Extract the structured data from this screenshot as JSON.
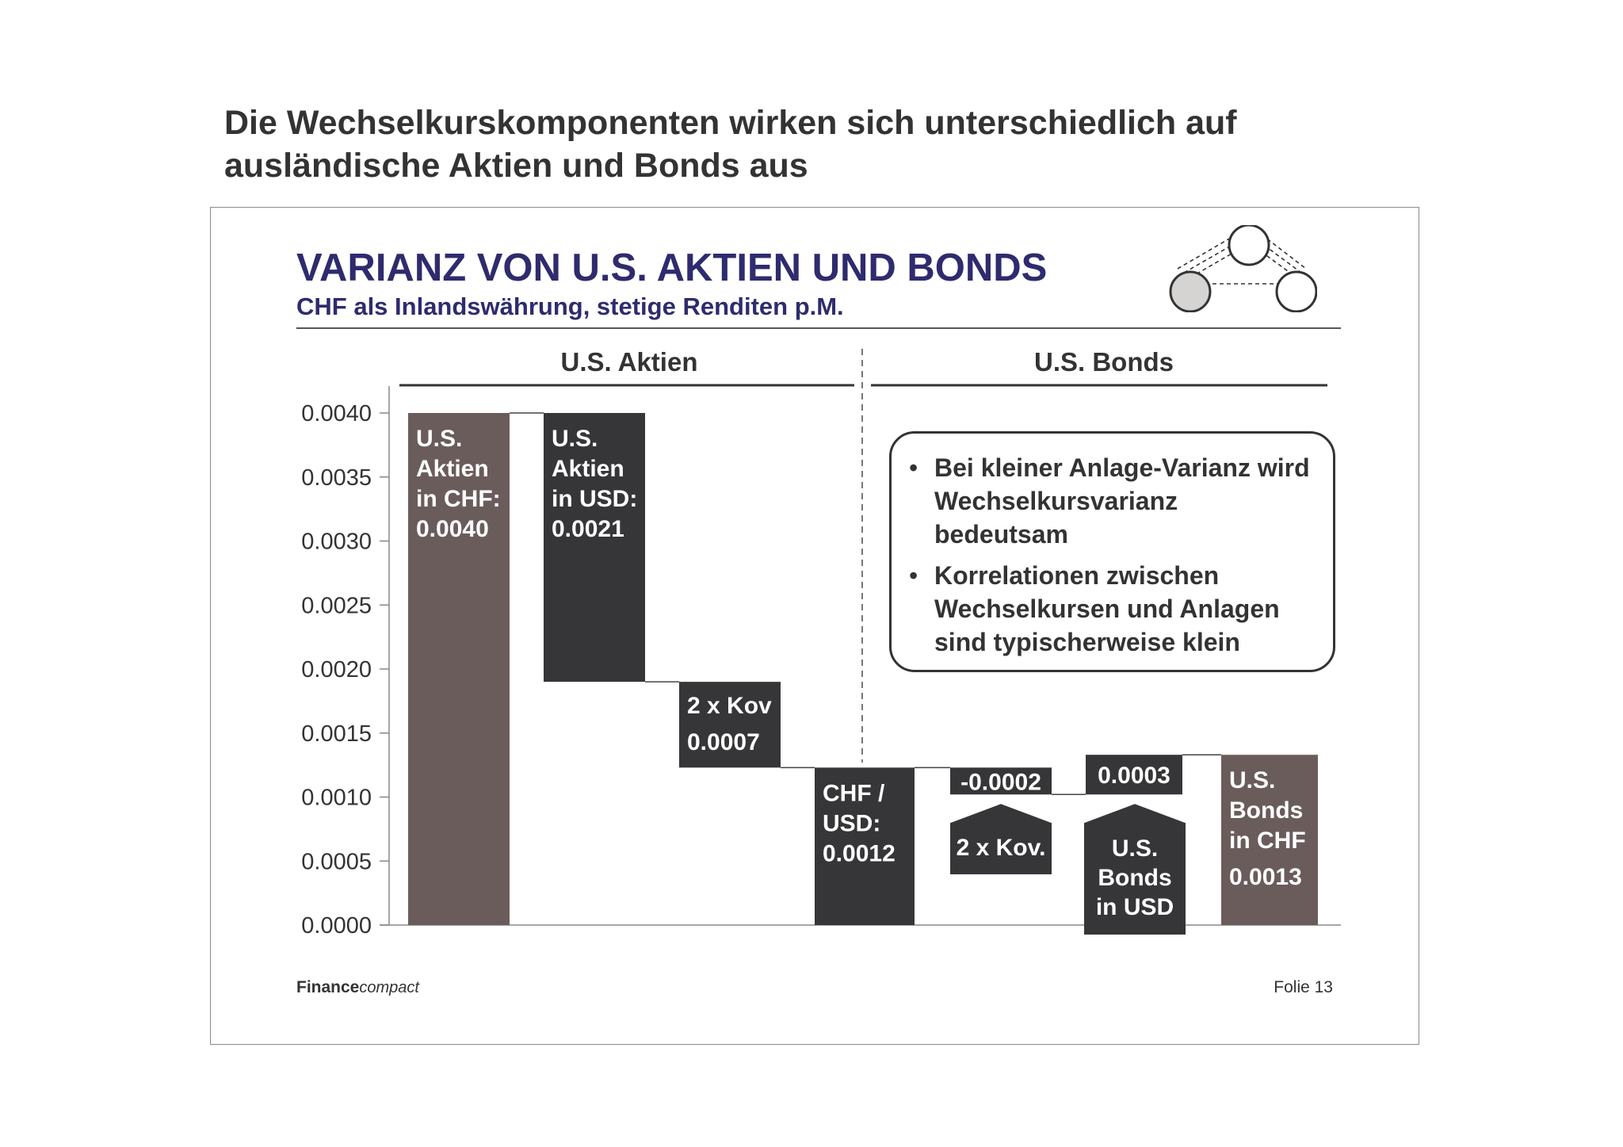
{
  "page": {
    "title": "Die Wechselkurskomponenten wirken sich unterschiedlich auf ausländische Aktien und Bonds aus"
  },
  "slide": {
    "title": "VARIANZ VON U.S. AKTIEN UND BONDS",
    "subtitle": "CHF als Inlandswährung, stetige Renditen p.M.",
    "footer_brand_bold": "Finance",
    "footer_brand_italic": "compact",
    "footer_page": "Folie 13",
    "notes": [
      "Bei kleiner Anlage-Varianz wird Wechselkursvarianz bedeutsam",
      "Korrelationen zwischen Wechselkursen und Anlagen sind typischerweise klein"
    ]
  },
  "colors": {
    "brown": "#6b5c5c",
    "dark": "#363638",
    "title_blue": "#2e2b6e",
    "axis": "#888888"
  },
  "icons": {
    "logo": "three-circles-network-icon"
  },
  "chart_data": {
    "type": "bar",
    "subtype": "waterfall",
    "ylim": [
      0,
      0.004
    ],
    "y_ticks": [
      "0.0000",
      "0.0005",
      "0.0010",
      "0.0015",
      "0.0020",
      "0.0025",
      "0.0030",
      "0.0035",
      "0.0040"
    ],
    "group_headers": [
      "U.S. Aktien",
      "U.S. Bonds"
    ],
    "bars": [
      {
        "group": 0,
        "kind": "total",
        "from": 0,
        "to": 0.004,
        "color": "brown",
        "lines": [
          "U.S.",
          "Aktien",
          "in CHF:",
          "0.0040"
        ]
      },
      {
        "group": 0,
        "kind": "step",
        "from": 0.0019,
        "to": 0.004,
        "color": "dark",
        "lines": [
          "U.S.",
          "Aktien",
          "in USD:",
          "0.0021"
        ]
      },
      {
        "group": 0,
        "kind": "step",
        "from": 0.00123,
        "to": 0.0019,
        "color": "dark",
        "lines": [
          "2 x Kov",
          "0.0007"
        ]
      },
      {
        "group": 0,
        "kind": "step",
        "from": 0,
        "to": 0.00123,
        "color": "dark",
        "lines": [
          "CHF /",
          "USD:",
          "0.0012"
        ]
      },
      {
        "group": 1,
        "kind": "step",
        "from": 0.00102,
        "to": 0.00123,
        "color": "dark",
        "lines": [
          "-0.0002"
        ],
        "tag": [
          "2 x Kov."
        ]
      },
      {
        "group": 1,
        "kind": "step",
        "from": 0.00102,
        "to": 0.00133,
        "color": "dark",
        "lines": [
          "0.0003"
        ],
        "tag": [
          "U.S.",
          "Bonds",
          "in USD"
        ]
      },
      {
        "group": 1,
        "kind": "total",
        "from": 0,
        "to": 0.00133,
        "color": "brown",
        "lines": [
          "U.S.",
          "Bonds",
          "in CHF",
          "0.0013"
        ]
      }
    ]
  }
}
